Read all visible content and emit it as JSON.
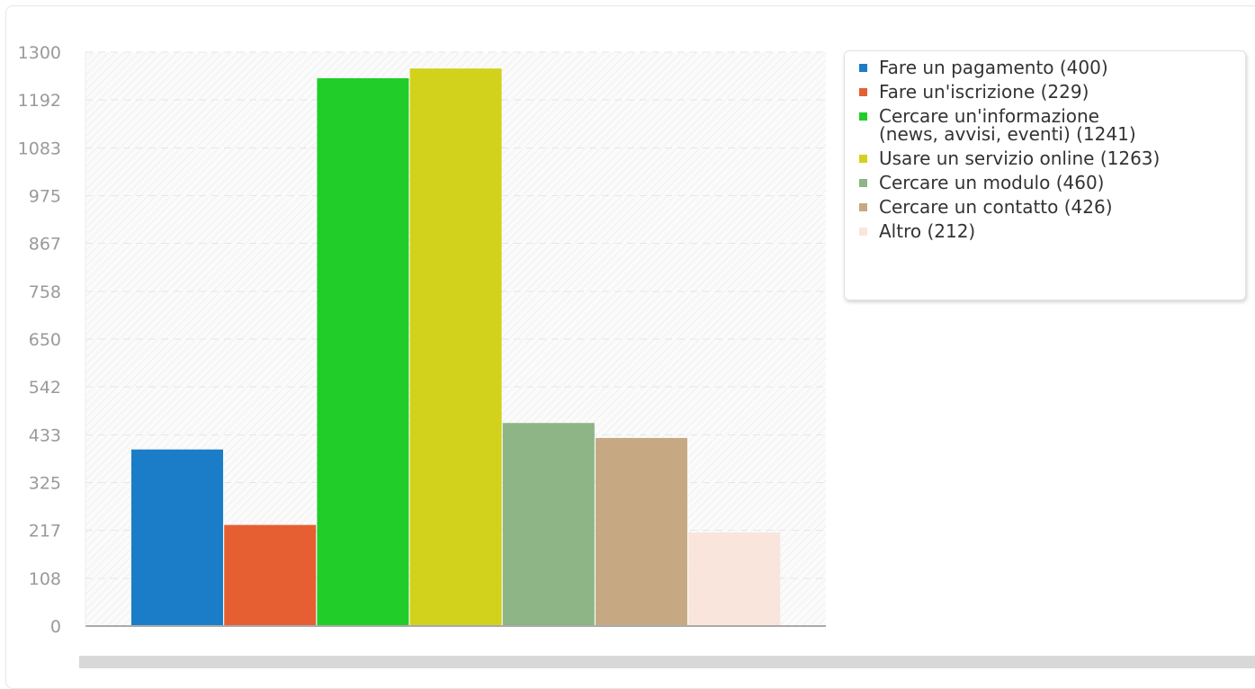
{
  "chart_data": {
    "type": "bar",
    "categories": [
      "Fare un pagamento",
      "Fare un'iscrizione",
      "Cercare un'informazione (news, avvisi, eventi)",
      "Usare un servizio online",
      "Cercare un modulo",
      "Cercare un contatto",
      "Altro"
    ],
    "values": [
      400,
      229,
      1241,
      1263,
      460,
      426,
      212
    ],
    "colors": [
      "#1b7dc7",
      "#e55f33",
      "#21cd28",
      "#d2d21c",
      "#8db585",
      "#c6a983",
      "#fae5dc"
    ],
    "ylim": [
      0,
      1300
    ],
    "yticks": [
      1300,
      1192,
      1083,
      975,
      867,
      758,
      650,
      542,
      433,
      325,
      217,
      108,
      0
    ],
    "grid": true,
    "legend_position": "right",
    "legend": [
      "Fare un pagamento (400)",
      "Fare un'iscrizione (229)",
      "Cercare un'informazione\n(news, avvisi, eventi) (1241)",
      "Usare un servizio online (1263)",
      "Cercare un modulo (460)",
      "Cercare un contatto (426)",
      "Altro (212)"
    ]
  }
}
